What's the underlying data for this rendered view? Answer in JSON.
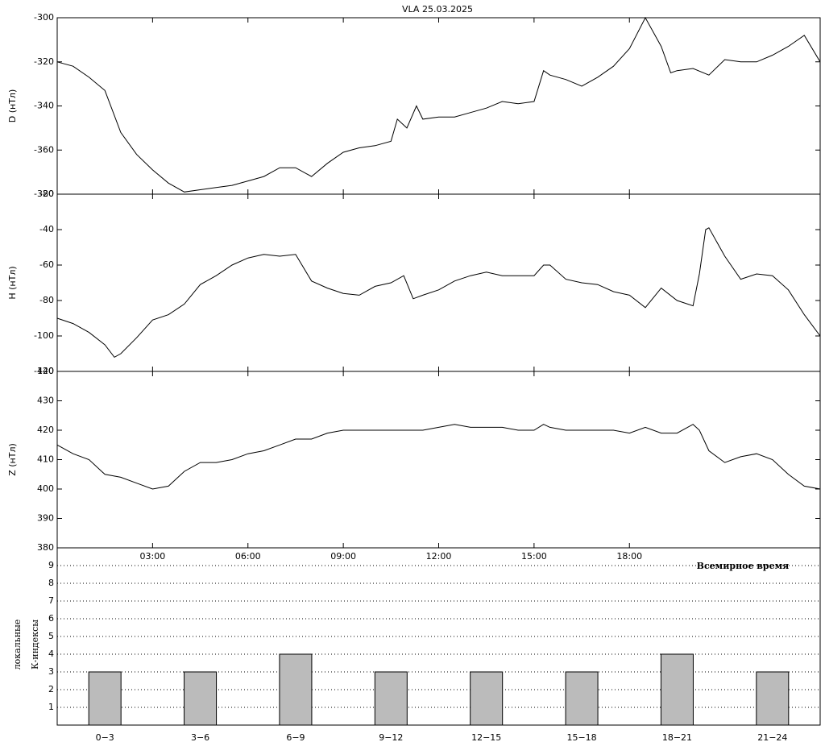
{
  "chart_data": [
    {
      "type": "line",
      "title": "VLA   25.03.2025",
      "ylabel": "D (нТл)",
      "color": "#000000",
      "xlim": [
        0,
        24
      ],
      "ylim": [
        -380,
        -300
      ],
      "yticks": [
        -380,
        -360,
        -340,
        -320,
        -300
      ],
      "x": [
        0,
        0.5,
        1,
        1.5,
        2,
        2.5,
        3,
        3.5,
        4,
        4.5,
        5,
        5.5,
        6,
        6.5,
        7,
        7.5,
        8,
        8.5,
        9,
        9.5,
        10,
        10.5,
        10.7,
        11,
        11.3,
        11.5,
        12,
        12.5,
        13,
        13.5,
        14,
        14.5,
        15,
        15.3,
        15.5,
        16,
        16.5,
        17,
        17.5,
        18,
        18.5,
        19,
        19.3,
        19.5,
        20,
        20.5,
        21,
        21.5,
        22,
        22.5,
        23,
        23.5,
        24
      ],
      "values": [
        -320,
        -322,
        -327,
        -333,
        -352,
        -362,
        -369,
        -375,
        -379,
        -378,
        -377,
        -376,
        -374,
        -372,
        -368,
        -368,
        -372,
        -366,
        -361,
        -359,
        -358,
        -356,
        -346,
        -350,
        -340,
        -346,
        -345,
        -345,
        -343,
        -341,
        -338,
        -339,
        -338,
        -324,
        -326,
        -328,
        -331,
        -327,
        -322,
        -314,
        -300,
        -313,
        -325,
        -324,
        -323,
        -326,
        -319,
        -320,
        -320,
        -317,
        -313,
        -308,
        -320
      ]
    },
    {
      "type": "line",
      "ylabel": "H (нТл)",
      "color": "#000000",
      "xlim": [
        0,
        24
      ],
      "ylim": [
        -120,
        -20
      ],
      "yticks": [
        -120,
        -100,
        -80,
        -60,
        -40,
        -20
      ],
      "x": [
        0,
        0.5,
        1,
        1.5,
        1.8,
        2,
        2.5,
        3,
        3.5,
        4,
        4.5,
        5,
        5.5,
        6,
        6.5,
        7,
        7.5,
        8,
        8.5,
        9,
        9.5,
        10,
        10.5,
        10.9,
        11.2,
        11.5,
        12,
        12.5,
        13,
        13.5,
        14,
        14.5,
        15,
        15.3,
        15.5,
        16,
        16.5,
        17,
        17.5,
        18,
        18.5,
        19,
        19.5,
        20,
        20.2,
        20.4,
        20.5,
        21,
        21.5,
        22,
        22.5,
        23,
        23.5,
        24
      ],
      "values": [
        -90,
        -93,
        -98,
        -105,
        -112,
        -110,
        -101,
        -91,
        -88,
        -82,
        -71,
        -66,
        -60,
        -56,
        -54,
        -55,
        -54,
        -69,
        -73,
        -76,
        -77,
        -72,
        -70,
        -66,
        -79,
        -77,
        -74,
        -69,
        -66,
        -64,
        -66,
        -66,
        -66,
        -60,
        -60,
        -68,
        -70,
        -71,
        -75,
        -77,
        -84,
        -73,
        -80,
        -83,
        -65,
        -40,
        -39,
        -55,
        -68,
        -65,
        -66,
        -74,
        -88,
        -100
      ]
    },
    {
      "type": "line",
      "ylabel": "Z (нТл)",
      "color": "#000000",
      "xlabel": "Всемирное время",
      "xlim": [
        0,
        24
      ],
      "xticks": [
        {
          "value": 3,
          "label": "03:00"
        },
        {
          "value": 6,
          "label": "06:00"
        },
        {
          "value": 9,
          "label": "09:00"
        },
        {
          "value": 12,
          "label": "12:00"
        },
        {
          "value": 15,
          "label": "15:00"
        },
        {
          "value": 18,
          "label": "18:00"
        }
      ],
      "ylim": [
        380,
        440
      ],
      "yticks": [
        380,
        390,
        400,
        410,
        420,
        430,
        440
      ],
      "x": [
        0,
        0.5,
        1,
        1.5,
        2,
        2.5,
        3,
        3.5,
        4,
        4.5,
        5,
        5.5,
        6,
        6.5,
        7,
        7.5,
        8,
        8.5,
        9,
        9.5,
        10,
        10.5,
        11,
        11.5,
        12,
        12.5,
        13,
        13.5,
        14,
        14.5,
        15,
        15.3,
        15.5,
        16,
        16.5,
        17,
        17.5,
        18,
        18.5,
        19,
        19.5,
        20,
        20.2,
        20.5,
        21,
        21.5,
        22,
        22.5,
        23,
        23.5,
        24
      ],
      "values": [
        415,
        412,
        410,
        405,
        404,
        402,
        400,
        401,
        406,
        409,
        409,
        410,
        412,
        413,
        415,
        417,
        417,
        419,
        420,
        420,
        420,
        420,
        420,
        420,
        421,
        422,
        421,
        421,
        421,
        420,
        420,
        422,
        421,
        420,
        420,
        420,
        420,
        419,
        421,
        419,
        419,
        422,
        420,
        413,
        409,
        411,
        412,
        410,
        405,
        401,
        400
      ]
    },
    {
      "type": "bar",
      "ylabel": [
        "локальные",
        "К-индексы"
      ],
      "color": "#bbbbbb",
      "grid": true,
      "categories": [
        "0−3",
        "3−6",
        "6−9",
        "9−12",
        "12−15",
        "15−18",
        "18−21",
        "21−24"
      ],
      "values": [
        3,
        3,
        4,
        3,
        3,
        3,
        4,
        3
      ],
      "ylim": [
        0,
        10
      ],
      "yticks": [
        1,
        2,
        3,
        4,
        5,
        6,
        7,
        8,
        9
      ]
    }
  ]
}
